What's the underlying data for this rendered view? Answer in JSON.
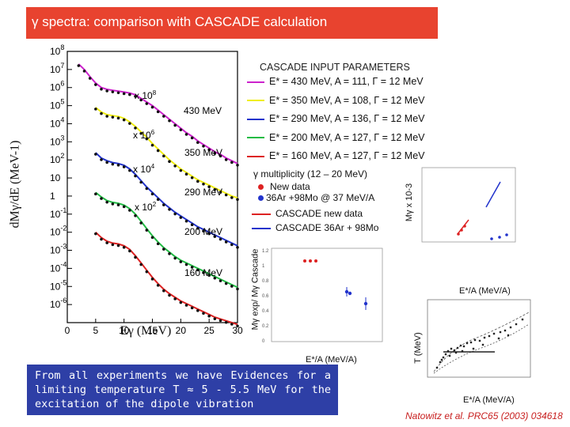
{
  "slide": {
    "title": "γ spectra: comparison with CASCADE calculation",
    "note": "From all experiments we have Evidences for a limiting temperature T ≈ 5 - 5.5 MeV for the excitation of the dipole vibration",
    "reference": "Natowitz et al. PRC65 (2003) 034618"
  },
  "colors": {
    "title_bar": "#e8432f",
    "note_box": "#2e3fa6",
    "magenta": "#cc22cc",
    "yellow": "#f0ee10",
    "blue": "#2233cc",
    "green": "#22bb44",
    "red": "#dd2222"
  },
  "params": {
    "title": "CASCADE INPUT PARAMETERS",
    "rows": [
      {
        "text": "E* = 430 MeV, A = 111, Γ = 12 MeV",
        "color": "#cc22cc"
      },
      {
        "text": "E* = 350 MeV, A = 108, Γ = 12 MeV",
        "color": "#f0ee10"
      },
      {
        "text": "E* = 290 MeV, A = 136, Γ = 12 MeV",
        "color": "#2233cc"
      },
      {
        "text": "E* = 200 MeV, A = 127, Γ = 12 MeV",
        "color": "#22bb44"
      },
      {
        "text": "E* = 160 MeV, A = 127, Γ = 12 MeV",
        "color": "#dd2222"
      }
    ]
  },
  "multiplicity": {
    "title": "γ multiplicity  (12 – 20 MeV)",
    "legend": [
      "New data",
      "36Ar +98Mo @ 37 MeV/A",
      "CASCADE new data",
      "CASCADE 36Ar + 98Mo"
    ]
  },
  "chart_data": [
    {
      "type": "scatter",
      "title": "",
      "xlabel": "Eγ (MeV)",
      "ylabel": "dMγ/dE (MeV-1)",
      "xlim": [
        0,
        30
      ],
      "ylim_log10": [
        -7,
        8
      ],
      "x_ticks": [
        "0",
        "5",
        "10",
        "15",
        "20",
        "25",
        "30"
      ],
      "y_tick_labels": [
        "10 8",
        "10 7",
        "10 6",
        "10 5",
        "10 4",
        "10 3",
        "10 2",
        "10",
        "1",
        "10 -1",
        "10 -2",
        "10 -3",
        "10 -4",
        "10 -5",
        "10 -6"
      ],
      "series_labels": [
        "430 MeV",
        "350 MeV",
        "290 MeV",
        "200 MeV",
        "160 MeV"
      ],
      "scale_labels": [
        "x 108",
        "x 106",
        "x 104",
        "x 102"
      ],
      "series": [
        {
          "name": "430 MeV",
          "color": "#cc22cc",
          "x": [
            2,
            3,
            4,
            5,
            6,
            7,
            8,
            9,
            10,
            11,
            12,
            13,
            14,
            15,
            16,
            17,
            18,
            19,
            20,
            21,
            22,
            23,
            24,
            25,
            26,
            27,
            28,
            29,
            30
          ],
          "log10y": [
            7.3,
            7.0,
            6.6,
            6.25,
            6.0,
            5.9,
            5.85,
            5.8,
            5.75,
            5.7,
            5.6,
            5.4,
            5.2,
            5.0,
            4.75,
            4.5,
            4.25,
            4.0,
            3.75,
            3.5,
            3.3,
            3.05,
            2.85,
            2.65,
            2.45,
            2.3,
            2.1,
            1.95,
            1.8
          ]
        },
        {
          "name": "350 MeV",
          "color": "#f0ee10",
          "x": [
            5,
            6,
            7,
            8,
            9,
            10,
            11,
            12,
            13,
            14,
            15,
            16,
            17,
            18,
            19,
            20,
            21,
            22,
            23,
            24,
            25,
            26,
            27,
            28,
            29,
            30
          ],
          "log10y": [
            4.9,
            4.65,
            4.5,
            4.45,
            4.4,
            4.3,
            4.1,
            3.85,
            3.55,
            3.25,
            2.9,
            2.6,
            2.3,
            2.0,
            1.75,
            1.5,
            1.3,
            1.1,
            0.9,
            0.75,
            0.6,
            0.45,
            0.3,
            0.15,
            0.0,
            -0.1
          ]
        },
        {
          "name": "290 MeV",
          "color": "#2233cc",
          "x": [
            5,
            6,
            7,
            8,
            9,
            10,
            11,
            12,
            13,
            14,
            15,
            16,
            17,
            18,
            19,
            20,
            21,
            22,
            23,
            24,
            25,
            26,
            27,
            28,
            29,
            30
          ],
          "log10y": [
            2.4,
            2.1,
            1.95,
            1.85,
            1.8,
            1.7,
            1.5,
            1.2,
            0.85,
            0.5,
            0.2,
            -0.1,
            -0.4,
            -0.65,
            -0.9,
            -1.1,
            -1.3,
            -1.5,
            -1.7,
            -1.85,
            -2.0,
            -2.15,
            -2.3,
            -2.45,
            -2.6,
            -2.75
          ]
        },
        {
          "name": "200 MeV",
          "color": "#22bb44",
          "x": [
            5,
            6,
            7,
            8,
            9,
            10,
            11,
            12,
            13,
            14,
            15,
            16,
            17,
            18,
            19,
            20,
            21,
            22,
            23,
            24,
            25,
            26,
            27,
            28,
            29,
            30
          ],
          "log10y": [
            0.2,
            -0.05,
            -0.25,
            -0.35,
            -0.4,
            -0.5,
            -0.7,
            -1.0,
            -1.4,
            -1.8,
            -2.2,
            -2.55,
            -2.85,
            -3.1,
            -3.35,
            -3.55,
            -3.7,
            -3.85,
            -4.0,
            -4.15,
            -4.3,
            -4.45,
            -4.6,
            -4.75,
            -4.9,
            -5.05
          ]
        },
        {
          "name": "160 MeV",
          "color": "#dd2222",
          "x": [
            5,
            6,
            7,
            8,
            9,
            10,
            11,
            12,
            13,
            14,
            15,
            16,
            17,
            18,
            19,
            20,
            21,
            22,
            23,
            24,
            25,
            26,
            27,
            28,
            29,
            30
          ],
          "log10y": [
            -2.0,
            -2.3,
            -2.5,
            -2.6,
            -2.65,
            -2.75,
            -2.95,
            -3.3,
            -3.7,
            -4.1,
            -4.5,
            -4.85,
            -5.15,
            -5.4,
            -5.6,
            -5.8,
            -5.95,
            -6.1,
            -6.25,
            -6.4,
            -6.55,
            -6.7,
            -6.8,
            -6.9,
            -7.0,
            -7.1
          ]
        }
      ]
    },
    {
      "type": "scatter",
      "title": "",
      "xlabel": "E*/A (MeV/A)",
      "ylabel": "Mγ exp/ Mγ Cascade",
      "y_ticks": [
        "1.2",
        "1",
        "0.8",
        "0.6",
        "0.4",
        "0.2",
        "0"
      ],
      "series": [
        {
          "color": "#dd2222",
          "x": [
            1.6,
            1.85,
            2.1
          ],
          "y": [
            1.0,
            1.0,
            1.0
          ]
        },
        {
          "color": "#2233cc",
          "x": [
            2.55,
            2.7,
            3.3
          ],
          "y": [
            0.58,
            0.56,
            0.38
          ]
        }
      ]
    },
    {
      "type": "line",
      "title": "",
      "xlabel": "E*/A (MeV/A)",
      "ylabel": "Mγ x 10-3",
      "series": [
        {
          "color": "#dd2222",
          "points": [
            [
              1.5,
              2.0
            ],
            [
              2.0,
              3.0
            ]
          ]
        },
        {
          "color": "#2233cc",
          "points": [
            [
              2.6,
              4.2
            ],
            [
              3.5,
              6.2
            ]
          ]
        }
      ]
    },
    {
      "type": "scatter",
      "title": "",
      "xlabel": "E*/A (MeV/A)",
      "ylabel": "T (MeV)",
      "series": []
    }
  ]
}
